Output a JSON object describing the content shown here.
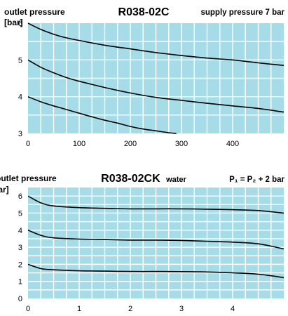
{
  "chart_data": [
    {
      "type": "line",
      "title": "R038-02C",
      "ylabel_line1": "outlet pressure",
      "ylabel_line2": "[bar]",
      "annotation": "supply pressure 7 bar",
      "xlim": [
        0,
        500
      ],
      "ylim": [
        3,
        6
      ],
      "x_ticks": [
        0,
        100,
        200,
        300,
        400
      ],
      "y_ticks": [
        3,
        4,
        5,
        6
      ],
      "grid": true,
      "colors": {
        "plot_bg": "#a6dce8",
        "grid": "#ffffff",
        "line": "#000000"
      },
      "series": [
        {
          "x": [
            0,
            25,
            50,
            75,
            100,
            150,
            200,
            250,
            300,
            350,
            400,
            450,
            500
          ],
          "values": [
            6.0,
            5.83,
            5.7,
            5.6,
            5.53,
            5.4,
            5.3,
            5.2,
            5.12,
            5.05,
            5.0,
            4.92,
            4.85
          ]
        },
        {
          "x": [
            0,
            25,
            50,
            75,
            100,
            150,
            200,
            250,
            300,
            350,
            400,
            450,
            500
          ],
          "values": [
            5.0,
            4.8,
            4.65,
            4.52,
            4.42,
            4.25,
            4.1,
            3.98,
            3.9,
            3.82,
            3.75,
            3.68,
            3.58
          ]
        },
        {
          "x": [
            0,
            25,
            50,
            75,
            100,
            125,
            150,
            175,
            200,
            225,
            250,
            275,
            290
          ],
          "values": [
            4.0,
            3.86,
            3.75,
            3.65,
            3.55,
            3.45,
            3.36,
            3.28,
            3.19,
            3.12,
            3.07,
            3.02,
            3.0
          ]
        }
      ]
    },
    {
      "type": "line",
      "title": "R038-02CK",
      "title_suffix": "water",
      "ylabel_line1": "outlet pressure",
      "ylabel_line2": "[bar]",
      "annotation": "P₁ = P₂ + 2 bar",
      "xlim": [
        0,
        5
      ],
      "ylim": [
        0,
        6.5
      ],
      "x_ticks": [
        0,
        1,
        2,
        3,
        4
      ],
      "y_ticks": [
        0,
        1,
        2,
        3,
        4,
        5,
        6
      ],
      "grid": true,
      "colors": {
        "plot_bg": "#a6dce8",
        "grid": "#ffffff",
        "line": "#000000"
      },
      "series": [
        {
          "x": [
            0,
            0.25,
            0.5,
            1,
            1.5,
            2,
            2.5,
            3,
            3.5,
            4,
            4.5,
            5
          ],
          "values": [
            6.0,
            5.6,
            5.42,
            5.32,
            5.28,
            5.25,
            5.25,
            5.25,
            5.23,
            5.2,
            5.15,
            5.0
          ]
        },
        {
          "x": [
            0,
            0.25,
            0.5,
            1,
            1.5,
            2,
            2.5,
            3,
            3.5,
            4,
            4.5,
            5
          ],
          "values": [
            4.0,
            3.7,
            3.55,
            3.48,
            3.45,
            3.42,
            3.42,
            3.4,
            3.35,
            3.3,
            3.2,
            2.9
          ]
        },
        {
          "x": [
            0,
            0.25,
            0.5,
            1,
            1.5,
            2,
            2.5,
            3,
            3.5,
            4,
            4.5,
            5
          ],
          "values": [
            2.0,
            1.75,
            1.68,
            1.62,
            1.6,
            1.58,
            1.58,
            1.57,
            1.55,
            1.5,
            1.42,
            1.22
          ]
        }
      ]
    }
  ]
}
